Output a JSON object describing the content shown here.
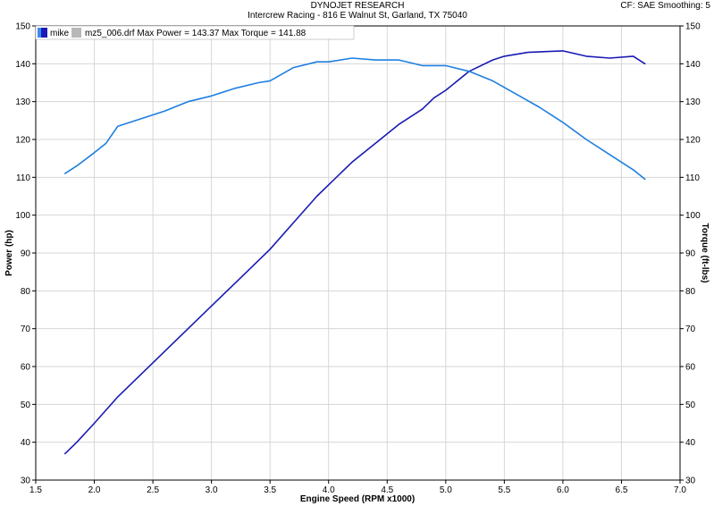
{
  "header": {
    "title": "DYNOJET RESEARCH",
    "subtitle": "Intercrew Racing - 816 E Walnut St, Garland, TX 75040",
    "correction": "CF: SAE  Smoothing: 5"
  },
  "legend": {
    "run_name": "mike",
    "file_info": "mz5_006.drf Max Power = 143.37 Max Torque = 141.88"
  },
  "colors": {
    "power": "#1a1ab4",
    "torque": "#1e7fe0",
    "grid": "#d6d6d6",
    "frame": "#000000"
  },
  "chart_data": {
    "type": "line",
    "title": "DYNOJET RESEARCH",
    "xlabel": "Engine Speed (RPM x1000)",
    "ylabel_left": "Power (hp)",
    "ylabel_right": "Torque (ft-lbs)",
    "xlim": [
      1.5,
      7.0
    ],
    "ylim": [
      30,
      150
    ],
    "x_ticks": [
      "1.5",
      "2.0",
      "2.5",
      "3.0",
      "3.5",
      "4.0",
      "4.5",
      "5.0",
      "5.5",
      "6.0",
      "6.5",
      "7.0"
    ],
    "y_ticks": [
      "30",
      "40",
      "50",
      "60",
      "70",
      "80",
      "90",
      "100",
      "110",
      "120",
      "130",
      "140",
      "150"
    ],
    "grid": true,
    "series": [
      {
        "name": "Power",
        "axis": "left",
        "x": [
          1.75,
          1.85,
          2.0,
          2.2,
          2.5,
          2.8,
          3.0,
          3.2,
          3.5,
          3.7,
          3.9,
          4.0,
          4.2,
          4.4,
          4.6,
          4.8,
          4.9,
          5.0,
          5.2,
          5.4,
          5.5,
          5.7,
          5.9,
          6.0,
          6.2,
          6.4,
          6.6,
          6.7
        ],
        "values": [
          37.0,
          40.0,
          45.0,
          52.0,
          61.0,
          70.0,
          76.0,
          82.0,
          91.0,
          98.0,
          105.0,
          108.0,
          114.0,
          119.0,
          124.0,
          128.0,
          131.0,
          133.0,
          138.0,
          141.0,
          142.0,
          143.0,
          143.3,
          143.4,
          142.0,
          141.5,
          142.0,
          140.0
        ]
      },
      {
        "name": "Torque",
        "axis": "right",
        "x": [
          1.75,
          1.85,
          2.0,
          2.1,
          2.2,
          2.4,
          2.6,
          2.8,
          3.0,
          3.2,
          3.4,
          3.5,
          3.7,
          3.9,
          4.0,
          4.2,
          4.4,
          4.6,
          4.8,
          5.0,
          5.2,
          5.4,
          5.6,
          5.8,
          6.0,
          6.2,
          6.4,
          6.6,
          6.7
        ],
        "values": [
          111.0,
          113.0,
          116.5,
          119.0,
          123.5,
          125.5,
          127.5,
          130.0,
          131.5,
          133.5,
          135.0,
          135.5,
          139.0,
          140.5,
          140.5,
          141.5,
          141.0,
          141.0,
          139.5,
          139.5,
          138.0,
          135.5,
          132.0,
          128.5,
          124.5,
          120.0,
          116.0,
          112.0,
          109.5
        ]
      }
    ]
  }
}
